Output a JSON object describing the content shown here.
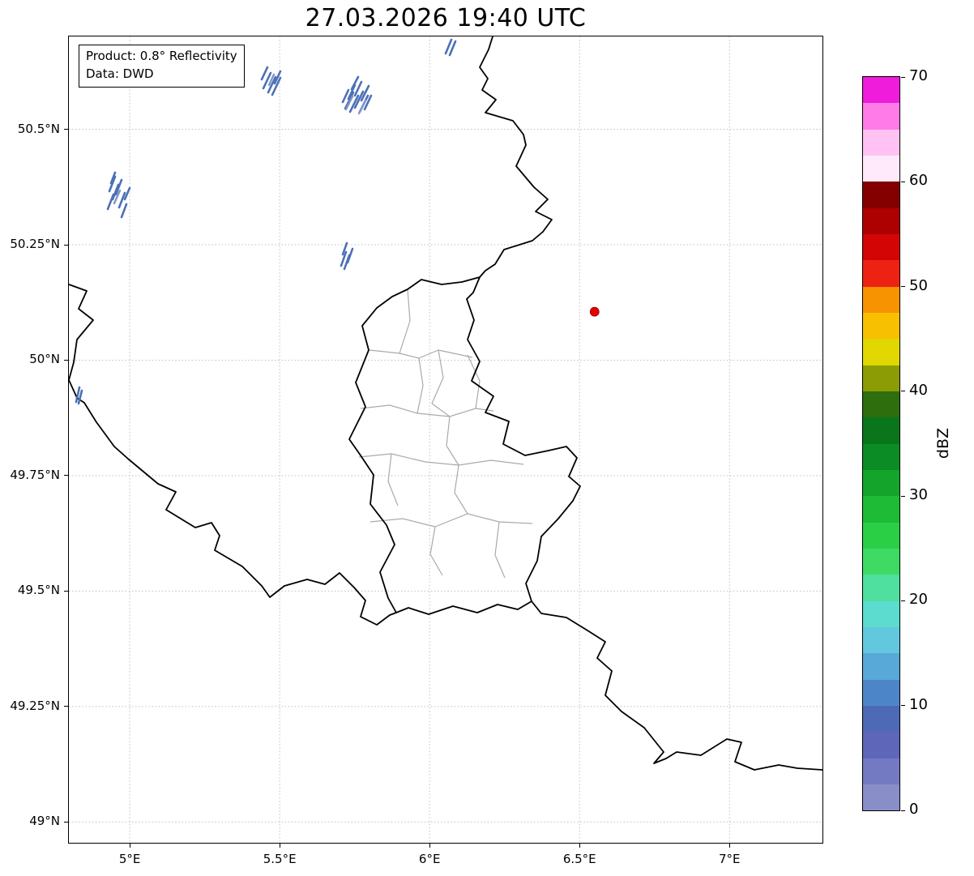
{
  "title": "27.03.2026 19:40 UTC",
  "info_box": {
    "line1": "Product: 0.8° Reflectivity",
    "line2": "Data: DWD"
  },
  "axes": {
    "x_range": [
      4.797,
      7.31
    ],
    "y_range": [
      48.955,
      50.701
    ],
    "grid_color": "#bfbfbf",
    "x_ticks": [
      {
        "value": 5.0,
        "label": "5°E"
      },
      {
        "value": 5.5,
        "label": "5.5°E"
      },
      {
        "value": 6.0,
        "label": "6°E"
      },
      {
        "value": 6.5,
        "label": "6.5°E"
      },
      {
        "value": 7.0,
        "label": "7°E"
      }
    ],
    "y_ticks": [
      {
        "value": 50.5,
        "label": "50.5°N"
      },
      {
        "value": 50.25,
        "label": "50.25°N"
      },
      {
        "value": 50.0,
        "label": "50°N"
      },
      {
        "value": 49.75,
        "label": "49.75°N"
      },
      {
        "value": 49.5,
        "label": "49.5°N"
      },
      {
        "value": 49.25,
        "label": "49.25°N"
      },
      {
        "value": 49.0,
        "label": "49°N"
      }
    ]
  },
  "colorbar": {
    "label": "dBZ",
    "vmin": 0,
    "vmax": 70,
    "tick_values": [
      0,
      10,
      20,
      30,
      40,
      50,
      60,
      70
    ],
    "tick_labels": [
      "0",
      "10",
      "20",
      "30",
      "40",
      "50",
      "60",
      "70"
    ],
    "segment_step_dbz": 2.5,
    "segment_colors_bottom_to_top": [
      "#8a8ec8",
      "#747ac2",
      "#5e66ba",
      "#4e6ab6",
      "#4d86c8",
      "#58a8d8",
      "#62c8de",
      "#5bdcce",
      "#4fdf9e",
      "#3eda64",
      "#2bcf46",
      "#1dbb36",
      "#14a42c",
      "#0c8c24",
      "#09761c",
      "#2e6e0c",
      "#8c9c04",
      "#e0d800",
      "#f7c000",
      "#f79200",
      "#ee2212",
      "#d40505",
      "#ad0000",
      "#840000",
      "#ffeafb",
      "#ffc2f2",
      "#ff7ce8",
      "#ef1cdc"
    ]
  },
  "map": {
    "marker": {
      "lon": 6.55,
      "lat": 50.105,
      "color": "#e50000",
      "edge_color": "#8b0000"
    },
    "echo_color": "#4c70b6",
    "echo_color_light": "#7e95cc",
    "border_color": "#000000",
    "canton_border_color": "#aaaaaa"
  },
  "chart_data": {
    "type": "map",
    "title": "27.03.2026 19:40 UTC",
    "projection_extent": {
      "lon": [
        4.797,
        7.31
      ],
      "lat": [
        48.955,
        50.701
      ]
    },
    "colorbar_label": "dBZ",
    "colorbar_range": [
      0,
      70
    ],
    "annotations": [
      "Product: 0.8° Reflectivity",
      "Data: DWD"
    ],
    "features": [
      "national borders (black): Belgium/Germany/Luxembourg/France",
      "Luxembourg canton borders (gray)",
      "scattered weak radar echoes (~0-10 dBZ, blue) northwest and north of Luxembourg",
      "red radar-site marker at about 6.55°E, 50.10°N"
    ]
  }
}
